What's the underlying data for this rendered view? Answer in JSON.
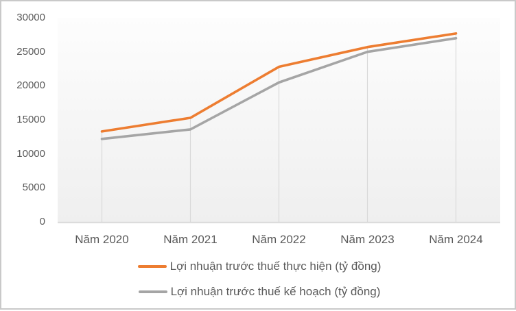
{
  "chart_data": {
    "type": "line",
    "title": "",
    "xlabel": "",
    "ylabel": "",
    "categories": [
      "Năm 2020",
      "Năm 2021",
      "Năm 2022",
      "Năm 2023",
      "Năm 2024"
    ],
    "series": [
      {
        "name": "Lợi nhuận trước thuế thực hiện (tỷ đồng)",
        "color": "#ED7D31",
        "values": [
          13300,
          15300,
          22800,
          25700,
          27700
        ]
      },
      {
        "name": "Lợi nhuận trước thuế kế hoạch (tỷ đồng)",
        "color": "#A5A5A5",
        "values": [
          12200,
          13600,
          20500,
          25000,
          27000
        ]
      }
    ],
    "ylim": [
      0,
      30000
    ],
    "ytick_interval": 5000,
    "ytick_labels": [
      "0",
      "5000",
      "10000",
      "15000",
      "20000",
      "25000",
      "30000"
    ],
    "grid": "vertical-droplines-only",
    "legend_position": "bottom"
  },
  "colors": {
    "series_actual": "#ED7D31",
    "series_plan": "#A5A5A5",
    "axis_text": "#595959",
    "gridline": "#D9D9D9",
    "plot_bg_top": "#FDFDFD",
    "plot_bg_bottom": "#EFEFEF",
    "frame_border": "#C9C9C9"
  }
}
